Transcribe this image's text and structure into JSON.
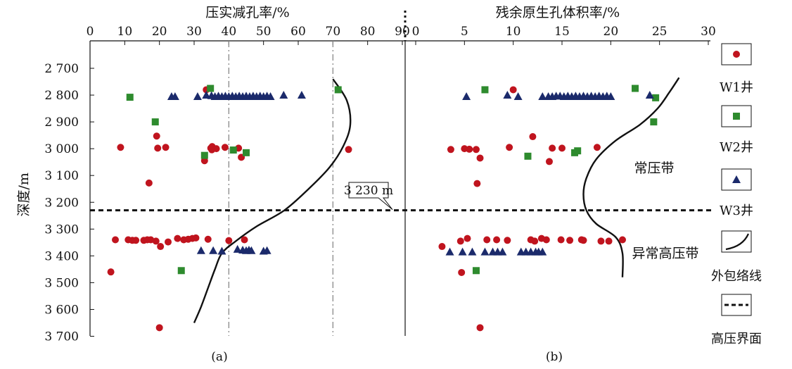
{
  "chart_data": {
    "type": "scatter",
    "y_axis": {
      "label": "深度/m",
      "range": [
        2650,
        3710
      ],
      "ticks": [
        {
          "value": 2700,
          "label": "2 700"
        },
        {
          "value": 2800,
          "label": "2 800"
        },
        {
          "value": 2900,
          "label": "2 900"
        },
        {
          "value": 3000,
          "label": "3 000"
        },
        {
          "value": 3100,
          "label": "3 100"
        },
        {
          "value": 3200,
          "label": "3 200"
        },
        {
          "value": 3300,
          "label": "3 300"
        },
        {
          "value": 3400,
          "label": "3 400"
        },
        {
          "value": 3500,
          "label": "3 500"
        },
        {
          "value": 3600,
          "label": "3 600"
        },
        {
          "value": 3700,
          "label": "3 700"
        }
      ],
      "inverted": true
    },
    "boundary": {
      "depth": 3230,
      "label": "3 230 m",
      "style": "dashed"
    },
    "zones": {
      "normal": "常压带",
      "abnormal": "异常高压带"
    },
    "panels": [
      {
        "id": "a",
        "label": "(a)",
        "x_label": "压实减孔率/%",
        "x_range": [
          0,
          92
        ],
        "x_ticks": [
          0,
          10,
          20,
          30,
          40,
          50,
          60,
          70,
          80,
          90
        ],
        "reference_lines_x": [
          40,
          70
        ],
        "series": [
          {
            "id": "W1",
            "points": [
              [
                33.5,
                2780
              ],
              [
                19.2,
                2953
              ],
              [
                8.8,
                2995
              ],
              [
                19.5,
                2998
              ],
              [
                21.8,
                2995
              ],
              [
                34.8,
                2998
              ],
              [
                35.2,
                2992
              ],
              [
                36.4,
                3000
              ],
              [
                38.9,
                2995
              ],
              [
                42.8,
                2998
              ],
              [
                74.5,
                3003
              ],
              [
                35.1,
                3004
              ],
              [
                43.6,
                3032
              ],
              [
                33.0,
                3045
              ],
              [
                17.0,
                3128
              ],
              [
                7.3,
                3340
              ],
              [
                11.0,
                3340
              ],
              [
                12.2,
                3342
              ],
              [
                13.2,
                3342
              ],
              [
                15.5,
                3342
              ],
              [
                16.5,
                3340
              ],
              [
                17.5,
                3340
              ],
              [
                19.0,
                3345
              ],
              [
                20.3,
                3365
              ],
              [
                22.5,
                3348
              ],
              [
                25.2,
                3335
              ],
              [
                27.0,
                3340
              ],
              [
                28.3,
                3338
              ],
              [
                29.5,
                3335
              ],
              [
                30.5,
                3333
              ],
              [
                34.0,
                3338
              ],
              [
                40.0,
                3343
              ],
              [
                44.5,
                3340
              ],
              [
                6.0,
                3460
              ],
              [
                20.0,
                3668
              ]
            ]
          },
          {
            "id": "W2",
            "points": [
              [
                11.5,
                2808
              ],
              [
                34.7,
                2775
              ],
              [
                71.5,
                2780
              ],
              [
                18.8,
                2900
              ],
              [
                33.0,
                3025
              ],
              [
                41.3,
                3005
              ],
              [
                45.0,
                3015
              ],
              [
                26.3,
                3455
              ]
            ]
          },
          {
            "id": "W3",
            "points": [
              [
                23.5,
                2805
              ],
              [
                24.5,
                2805
              ],
              [
                31.0,
                2805
              ],
              [
                33.5,
                2800
              ],
              [
                35.0,
                2802
              ],
              [
                36.0,
                2805
              ],
              [
                37.0,
                2803
              ],
              [
                38.0,
                2805
              ],
              [
                39.0,
                2803
              ],
              [
                40.0,
                2805
              ],
              [
                41.0,
                2803
              ],
              [
                42.0,
                2805
              ],
              [
                43.0,
                2803
              ],
              [
                44.0,
                2805
              ],
              [
                45.0,
                2803
              ],
              [
                46.0,
                2805
              ],
              [
                47.0,
                2803
              ],
              [
                48.0,
                2805
              ],
              [
                49.0,
                2803
              ],
              [
                50.0,
                2805
              ],
              [
                51.0,
                2803
              ],
              [
                52.0,
                2805
              ],
              [
                55.8,
                2800
              ],
              [
                61.0,
                2800
              ],
              [
                32.0,
                3380
              ],
              [
                35.5,
                3380
              ],
              [
                38.0,
                3382
              ],
              [
                42.5,
                3375
              ],
              [
                44.0,
                3378
              ],
              [
                45.0,
                3380
              ],
              [
                45.8,
                3378
              ],
              [
                46.5,
                3380
              ],
              [
                50.0,
                3382
              ],
              [
                51.0,
                3380
              ]
            ]
          }
        ],
        "envelope": [
          [
            70,
            2740
          ],
          [
            74,
            2820
          ],
          [
            75,
            2910
          ],
          [
            73,
            2990
          ],
          [
            69,
            3070
          ],
          [
            63,
            3150
          ],
          [
            56,
            3230
          ],
          [
            48,
            3290
          ],
          [
            42,
            3345
          ],
          [
            38,
            3390
          ],
          [
            36,
            3450
          ],
          [
            34,
            3520
          ],
          [
            32,
            3590
          ],
          [
            30,
            3650
          ]
        ]
      },
      {
        "id": "b",
        "label": "(b)",
        "x_label": "残余原生孔体积率/%",
        "x_range": [
          -0.5,
          30
        ],
        "x_ticks": [
          0,
          5,
          10,
          15,
          20,
          25,
          30
        ],
        "series": [
          {
            "id": "W1",
            "points": [
              [
                10.0,
                2780
              ],
              [
                12.0,
                2955
              ],
              [
                3.6,
                3003
              ],
              [
                5.0,
                3000
              ],
              [
                5.5,
                3002
              ],
              [
                6.2,
                3003
              ],
              [
                9.6,
                2995
              ],
              [
                14.0,
                2998
              ],
              [
                15.0,
                2998
              ],
              [
                18.6,
                2995
              ],
              [
                6.6,
                3035
              ],
              [
                13.7,
                3048
              ],
              [
                6.3,
                3130
              ],
              [
                2.7,
                3365
              ],
              [
                4.6,
                3345
              ],
              [
                5.3,
                3335
              ],
              [
                7.3,
                3340
              ],
              [
                8.3,
                3340
              ],
              [
                9.4,
                3342
              ],
              [
                11.8,
                3340
              ],
              [
                12.2,
                3345
              ],
              [
                12.9,
                3335
              ],
              [
                13.4,
                3340
              ],
              [
                14.9,
                3340
              ],
              [
                15.8,
                3342
              ],
              [
                17.0,
                3340
              ],
              [
                17.2,
                3342
              ],
              [
                19.0,
                3345
              ],
              [
                19.8,
                3345
              ],
              [
                21.2,
                3340
              ],
              [
                4.7,
                3462
              ],
              [
                6.6,
                3668
              ]
            ]
          },
          {
            "id": "W2",
            "points": [
              [
                7.1,
                2780
              ],
              [
                22.5,
                2775
              ],
              [
                24.6,
                2810
              ],
              [
                24.4,
                2900
              ],
              [
                11.5,
                3028
              ],
              [
                16.3,
                3015
              ],
              [
                16.6,
                3008
              ],
              [
                6.2,
                3455
              ]
            ]
          },
          {
            "id": "W3",
            "points": [
              [
                5.2,
                2805
              ],
              [
                9.4,
                2800
              ],
              [
                10.5,
                2805
              ],
              [
                13.0,
                2805
              ],
              [
                13.6,
                2805
              ],
              [
                14.0,
                2805
              ],
              [
                14.4,
                2803
              ],
              [
                14.8,
                2803
              ],
              [
                15.2,
                2805
              ],
              [
                15.6,
                2803
              ],
              [
                16.0,
                2805
              ],
              [
                16.4,
                2803
              ],
              [
                16.8,
                2805
              ],
              [
                17.2,
                2803
              ],
              [
                17.6,
                2805
              ],
              [
                18.0,
                2803
              ],
              [
                18.4,
                2805
              ],
              [
                18.8,
                2803
              ],
              [
                19.2,
                2805
              ],
              [
                19.6,
                2803
              ],
              [
                20.0,
                2805
              ],
              [
                24.0,
                2800
              ],
              [
                3.5,
                3385
              ],
              [
                4.8,
                3385
              ],
              [
                5.8,
                3385
              ],
              [
                7.1,
                3385
              ],
              [
                7.9,
                3385
              ],
              [
                8.4,
                3385
              ],
              [
                8.9,
                3385
              ],
              [
                10.8,
                3385
              ],
              [
                11.3,
                3385
              ],
              [
                11.8,
                3385
              ],
              [
                12.3,
                3385
              ],
              [
                12.6,
                3385
              ],
              [
                13.0,
                3385
              ]
            ]
          }
        ],
        "envelope": [
          [
            27,
            2735
          ],
          [
            26,
            2790
          ],
          [
            24.8,
            2850
          ],
          [
            23,
            2910
          ],
          [
            20.5,
            2970
          ],
          [
            18.5,
            3040
          ],
          [
            17.5,
            3110
          ],
          [
            17.2,
            3170
          ],
          [
            17.5,
            3230
          ],
          [
            18.5,
            3280
          ],
          [
            20.5,
            3330
          ],
          [
            21.2,
            3390
          ],
          [
            21.2,
            3480
          ]
        ]
      }
    ],
    "legend": [
      {
        "id": "W1",
        "label": "W1井",
        "marker": "circle",
        "color": "#c0141e"
      },
      {
        "id": "W2",
        "label": "W2井",
        "marker": "square",
        "color": "#2e8b2e"
      },
      {
        "id": "W3",
        "label": "W3井",
        "marker": "triangle",
        "color": "#1b2a6b"
      },
      {
        "id": "env",
        "label": "外包络线",
        "marker": "curve",
        "color": "#111111"
      },
      {
        "id": "bound",
        "label": "高压界面",
        "marker": "dashed",
        "color": "#111111"
      }
    ]
  }
}
